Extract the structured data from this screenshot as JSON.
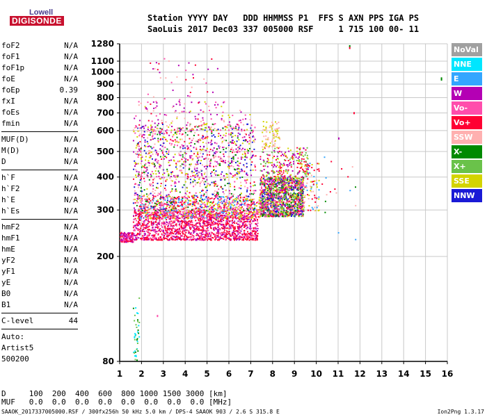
{
  "logo": {
    "top": "Lowell",
    "bottom": "DIGISONDE"
  },
  "header": {
    "line1": "Station YYYY DAY   DDD HHMMSS P1  FFS S AXN PPS IGA PS",
    "line2": "SaoLuis 2017 Dec03 337 005000 RSF     1 715 100 00- 11"
  },
  "params": {
    "group1": [
      {
        "name": "foF2",
        "value": "N/A"
      },
      {
        "name": "foF1",
        "value": "N/A"
      },
      {
        "name": "foF1p",
        "value": "N/A"
      },
      {
        "name": "foE",
        "value": "N/A"
      },
      {
        "name": "foEp",
        "value": "0.39"
      },
      {
        "name": "fxI",
        "value": "N/A"
      },
      {
        "name": "foEs",
        "value": "N/A"
      },
      {
        "name": "fmin",
        "value": "N/A"
      }
    ],
    "group2": [
      {
        "name": "MUF(D)",
        "value": "N/A"
      },
      {
        "name": "M(D)",
        "value": "N/A"
      },
      {
        "name": "D",
        "value": "N/A"
      }
    ],
    "group3": [
      {
        "name": "h`F",
        "value": "N/A"
      },
      {
        "name": "h`F2",
        "value": "N/A"
      },
      {
        "name": "h`E",
        "value": "N/A"
      },
      {
        "name": "h`Es",
        "value": "N/A"
      }
    ],
    "group4": [
      {
        "name": "hmF2",
        "value": "N/A"
      },
      {
        "name": "hmF1",
        "value": "N/A"
      },
      {
        "name": "hmE",
        "value": "N/A"
      },
      {
        "name": "yF2",
        "value": "N/A"
      },
      {
        "name": "yF1",
        "value": "N/A"
      },
      {
        "name": "yE",
        "value": "N/A"
      },
      {
        "name": "B0",
        "value": "N/A"
      },
      {
        "name": "B1",
        "value": "N/A"
      }
    ],
    "clevel": {
      "name": "C-level",
      "value": "44"
    },
    "auto_label": "Auto:",
    "artist": "Artist5",
    "code": "500200"
  },
  "legend": [
    {
      "label": "NoVal",
      "color": "#a0a0a0"
    },
    {
      "label": "NNE",
      "color": "#00e6ff"
    },
    {
      "label": "E",
      "color": "#33a6ff"
    },
    {
      "label": "W",
      "color": "#b400b4"
    },
    {
      "label": "Vo-",
      "color": "#ff4dac"
    },
    {
      "label": "Vo+",
      "color": "#ff0033"
    },
    {
      "label": "SSW",
      "color": "#ffb0b0"
    },
    {
      "label": "X-",
      "color": "#008a00"
    },
    {
      "label": "X+",
      "color": "#6ac24a"
    },
    {
      "label": "SSE",
      "color": "#d4d400"
    },
    {
      "label": "NNW",
      "color": "#1a1ad6"
    }
  ],
  "distance_table": {
    "row1": "D     100  200  400  600  800 1000 1500 3000 [km]",
    "row2": "MUF   0.0  0.0  0.0  0.0  0.0  0.0  0.0  0.0 [MHz]"
  },
  "footer": {
    "left": "SAAOK_2017337005000.RSF / 300fx256h 50 kHz 5.0 km / DPS-4 SAAOK 903 / 2.6 S 315.8 E",
    "right": "Ion2Png 1.3.17"
  },
  "chart_data": {
    "type": "scatter",
    "title": "",
    "xlabel": "",
    "ylabel": "",
    "x_unit": "MHz",
    "y_unit": "km",
    "xlim": [
      1,
      16
    ],
    "ylim": [
      80,
      1280
    ],
    "x_ticks": [
      1,
      2,
      3,
      4,
      5,
      6,
      7,
      8,
      9,
      10,
      11,
      12,
      13,
      14,
      15,
      16
    ],
    "y_ticks": [
      80,
      200,
      300,
      400,
      500,
      600,
      700,
      800,
      900,
      1000,
      1100,
      1280
    ],
    "y_scale": "log",
    "grid": true,
    "seed": 7,
    "clusters": [
      {
        "x": [
          1.0,
          1.6
        ],
        "y": [
          228,
          248
        ],
        "n": 140,
        "colors": [
          "#ff0033",
          "#ff4dac",
          "#b400b4"
        ]
      },
      {
        "x": [
          1.6,
          7.3
        ],
        "y": [
          232,
          300
        ],
        "n": 1500,
        "colors": [
          "#ff0033",
          "#ff4dac",
          "#b400b4",
          "#ff0033"
        ]
      },
      {
        "x": [
          1.8,
          7.4
        ],
        "y": [
          280,
          340
        ],
        "n": 700,
        "colors": [
          "#d4d400",
          "#ff4dac",
          "#ff0033",
          "#33a6ff"
        ]
      },
      {
        "x": [
          1.6,
          7.2
        ],
        "y": [
          300,
          640
        ],
        "n": 1200,
        "colors": [
          "#b400b4",
          "#ff4dac",
          "#1a1ad6",
          "#ff0033",
          "#d4d400",
          "#008a00",
          "#ffb0b0"
        ]
      },
      {
        "x": [
          1.6,
          7.0
        ],
        "y": [
          400,
          780
        ],
        "n": 260,
        "colors": [
          "#b400b4",
          "#ff4dac",
          "#ffb0b0",
          "#d4d400"
        ]
      },
      {
        "x": [
          7.4,
          9.4
        ],
        "y": [
          285,
          400
        ],
        "n": 1300,
        "colors": [
          "#ff0033",
          "#b400b4",
          "#1a1ad6",
          "#ff4dac",
          "#d4d400",
          "#6ac24a",
          "#008a00"
        ]
      },
      {
        "x": [
          7.4,
          9.6
        ],
        "y": [
          400,
          520
        ],
        "n": 240,
        "colors": [
          "#d4d400",
          "#b400b4",
          "#ff0033",
          "#6ac24a"
        ]
      },
      {
        "x": [
          7.5,
          8.3
        ],
        "y": [
          520,
          660
        ],
        "n": 80,
        "colors": [
          "#d4d400",
          "#ffb0b0"
        ]
      },
      {
        "x": [
          9.3,
          10.1
        ],
        "y": [
          300,
          460
        ],
        "n": 80,
        "colors": [
          "#d4d400",
          "#ff0033",
          "#33a6ff",
          "#ffb0b0"
        ]
      },
      {
        "x": [
          2.2,
          5.5
        ],
        "y": [
          600,
          1150
        ],
        "n": 70,
        "colors": [
          "#b400b4",
          "#ff4dac",
          "#ff0033",
          "#ffb0b0"
        ]
      },
      {
        "x": [
          1.6,
          1.9
        ],
        "y": [
          80,
          140
        ],
        "n": 40,
        "colors": [
          "#00e6ff",
          "#6ac24a",
          "#008a00"
        ]
      },
      {
        "x": [
          10.2,
          11.8
        ],
        "y": [
          220,
          480
        ],
        "n": 18,
        "colors": [
          "#ff0033",
          "#008a00",
          "#ffb0b0",
          "#33a6ff"
        ]
      }
    ],
    "points": [
      {
        "x": 11.5,
        "y": 1265,
        "color": "#008a00"
      },
      {
        "x": 11.5,
        "y": 1245,
        "color": "#ff0033"
      },
      {
        "x": 11.7,
        "y": 705,
        "color": "#ff0033"
      },
      {
        "x": 11.0,
        "y": 565,
        "color": "#b400b4"
      },
      {
        "x": 15.7,
        "y": 945,
        "color": "#008a00"
      },
      {
        "x": 15.7,
        "y": 955,
        "color": "#008a00"
      },
      {
        "x": 2.7,
        "y": 120,
        "color": "#ff4dac"
      }
    ]
  }
}
